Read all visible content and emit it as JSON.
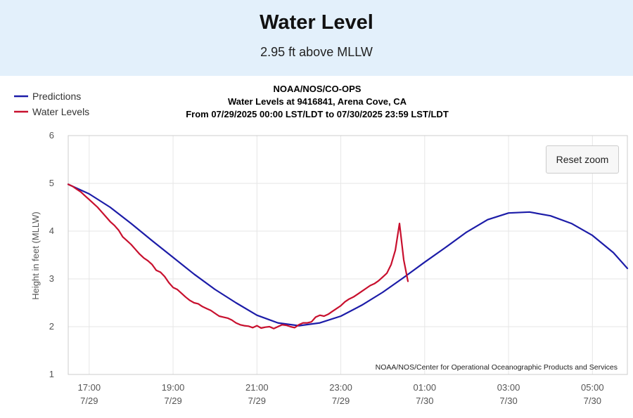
{
  "header": {
    "title": "Water Level",
    "current_value": "2.95 ft above MLLW"
  },
  "reset_zoom_label": "Reset zoom",
  "chart_data": {
    "type": "line",
    "title_lines": [
      "NOAA/NOS/CO-OPS",
      "Water Levels at 9416841, Arena Cove, CA",
      "From 07/29/2025 00:00 LST/LDT to 07/30/2025 23:59 LST/LDT"
    ],
    "ylabel": "Height in feet (MLLW)",
    "xlabel": "",
    "credit": "NOAA/NOS/Center for Operational Oceanographic Products and Services",
    "ylim": [
      1,
      6
    ],
    "yticks": [
      1,
      2,
      3,
      4,
      5,
      6
    ],
    "xlim": [
      "07/29/2025 16:30",
      "07/30/2025 05:50"
    ],
    "xticks": [
      {
        "at": "07/29/2025 17:00",
        "time": "17:00",
        "date": "7/29"
      },
      {
        "at": "07/29/2025 19:00",
        "time": "19:00",
        "date": "7/29"
      },
      {
        "at": "07/29/2025 21:00",
        "time": "21:00",
        "date": "7/29"
      },
      {
        "at": "07/29/2025 23:00",
        "time": "23:00",
        "date": "7/29"
      },
      {
        "at": "07/30/2025 01:00",
        "time": "01:00",
        "date": "7/30"
      },
      {
        "at": "07/30/2025 03:00",
        "time": "03:00",
        "date": "7/30"
      },
      {
        "at": "07/30/2025 05:00",
        "time": "05:00",
        "date": "7/30"
      }
    ],
    "grid": true,
    "legend_position": "top-left",
    "series": [
      {
        "name": "Predictions",
        "color": "#1c1ca8",
        "x": [
          "07/29/2025 16:30",
          "07/29/2025 17:00",
          "07/29/2025 17:30",
          "07/29/2025 18:00",
          "07/29/2025 18:30",
          "07/29/2025 19:00",
          "07/29/2025 19:30",
          "07/29/2025 20:00",
          "07/29/2025 20:30",
          "07/29/2025 21:00",
          "07/29/2025 21:30",
          "07/29/2025 22:00",
          "07/29/2025 22:30",
          "07/29/2025 23:00",
          "07/29/2025 23:30",
          "07/30/2025 00:00",
          "07/30/2025 00:30",
          "07/30/2025 01:00",
          "07/30/2025 01:30",
          "07/30/2025 02:00",
          "07/30/2025 02:30",
          "07/30/2025 03:00",
          "07/30/2025 03:30",
          "07/30/2025 04:00",
          "07/30/2025 04:30",
          "07/30/2025 05:00",
          "07/30/2025 05:30",
          "07/30/2025 05:50"
        ],
        "y": [
          4.98,
          4.78,
          4.5,
          4.16,
          3.8,
          3.45,
          3.1,
          2.78,
          2.5,
          2.24,
          2.08,
          2.02,
          2.08,
          2.22,
          2.45,
          2.72,
          3.03,
          3.35,
          3.66,
          3.98,
          4.24,
          4.38,
          4.4,
          4.32,
          4.16,
          3.91,
          3.55,
          3.22
        ]
      },
      {
        "name": "Water Levels",
        "color": "#c8102e",
        "x": [
          "07/29/2025 16:30",
          "07/29/2025 16:36",
          "07/29/2025 16:42",
          "07/29/2025 16:48",
          "07/29/2025 16:54",
          "07/29/2025 17:00",
          "07/29/2025 17:06",
          "07/29/2025 17:12",
          "07/29/2025 17:18",
          "07/29/2025 17:24",
          "07/29/2025 17:30",
          "07/29/2025 17:36",
          "07/29/2025 17:42",
          "07/29/2025 17:48",
          "07/29/2025 17:54",
          "07/29/2025 18:00",
          "07/29/2025 18:06",
          "07/29/2025 18:12",
          "07/29/2025 18:18",
          "07/29/2025 18:24",
          "07/29/2025 18:30",
          "07/29/2025 18:36",
          "07/29/2025 18:42",
          "07/29/2025 18:48",
          "07/29/2025 18:54",
          "07/29/2025 19:00",
          "07/29/2025 19:06",
          "07/29/2025 19:12",
          "07/29/2025 19:18",
          "07/29/2025 19:24",
          "07/29/2025 19:30",
          "07/29/2025 19:36",
          "07/29/2025 19:42",
          "07/29/2025 19:48",
          "07/29/2025 19:54",
          "07/29/2025 20:00",
          "07/29/2025 20:06",
          "07/29/2025 20:12",
          "07/29/2025 20:18",
          "07/29/2025 20:24",
          "07/29/2025 20:30",
          "07/29/2025 20:36",
          "07/29/2025 20:42",
          "07/29/2025 20:48",
          "07/29/2025 20:54",
          "07/29/2025 21:00",
          "07/29/2025 21:06",
          "07/29/2025 21:12",
          "07/29/2025 21:18",
          "07/29/2025 21:24",
          "07/29/2025 21:30",
          "07/29/2025 21:36",
          "07/29/2025 21:42",
          "07/29/2025 21:48",
          "07/29/2025 21:54",
          "07/29/2025 22:00",
          "07/29/2025 22:06",
          "07/29/2025 22:12",
          "07/29/2025 22:18",
          "07/29/2025 22:24",
          "07/29/2025 22:30",
          "07/29/2025 22:36",
          "07/29/2025 22:42",
          "07/29/2025 22:48",
          "07/29/2025 22:54",
          "07/29/2025 23:00",
          "07/29/2025 23:06",
          "07/29/2025 23:12",
          "07/29/2025 23:18",
          "07/29/2025 23:24",
          "07/29/2025 23:30",
          "07/29/2025 23:36",
          "07/29/2025 23:42",
          "07/29/2025 23:48",
          "07/29/2025 23:54",
          "07/30/2025 00:00",
          "07/30/2025 00:06",
          "07/30/2025 00:12",
          "07/30/2025 00:18",
          "07/30/2025 00:24",
          "07/30/2025 00:30",
          "07/30/2025 00:36"
        ],
        "y": [
          4.98,
          4.94,
          4.88,
          4.82,
          4.74,
          4.66,
          4.58,
          4.5,
          4.4,
          4.3,
          4.2,
          4.12,
          4.02,
          3.88,
          3.8,
          3.72,
          3.62,
          3.52,
          3.44,
          3.38,
          3.3,
          3.18,
          3.14,
          3.05,
          2.92,
          2.82,
          2.78,
          2.7,
          2.62,
          2.55,
          2.5,
          2.48,
          2.42,
          2.38,
          2.34,
          2.28,
          2.22,
          2.2,
          2.18,
          2.14,
          2.08,
          2.04,
          2.02,
          2.01,
          1.98,
          2.02,
          1.97,
          1.99,
          2.0,
          1.96,
          2.0,
          2.04,
          2.03,
          2.0,
          1.98,
          2.04,
          2.08,
          2.08,
          2.1,
          2.2,
          2.24,
          2.22,
          2.26,
          2.32,
          2.38,
          2.44,
          2.52,
          2.58,
          2.62,
          2.68,
          2.74,
          2.8,
          2.86,
          2.9,
          2.96,
          3.04,
          3.12,
          3.3,
          3.6,
          4.16,
          3.4,
          2.95
        ]
      }
    ]
  }
}
